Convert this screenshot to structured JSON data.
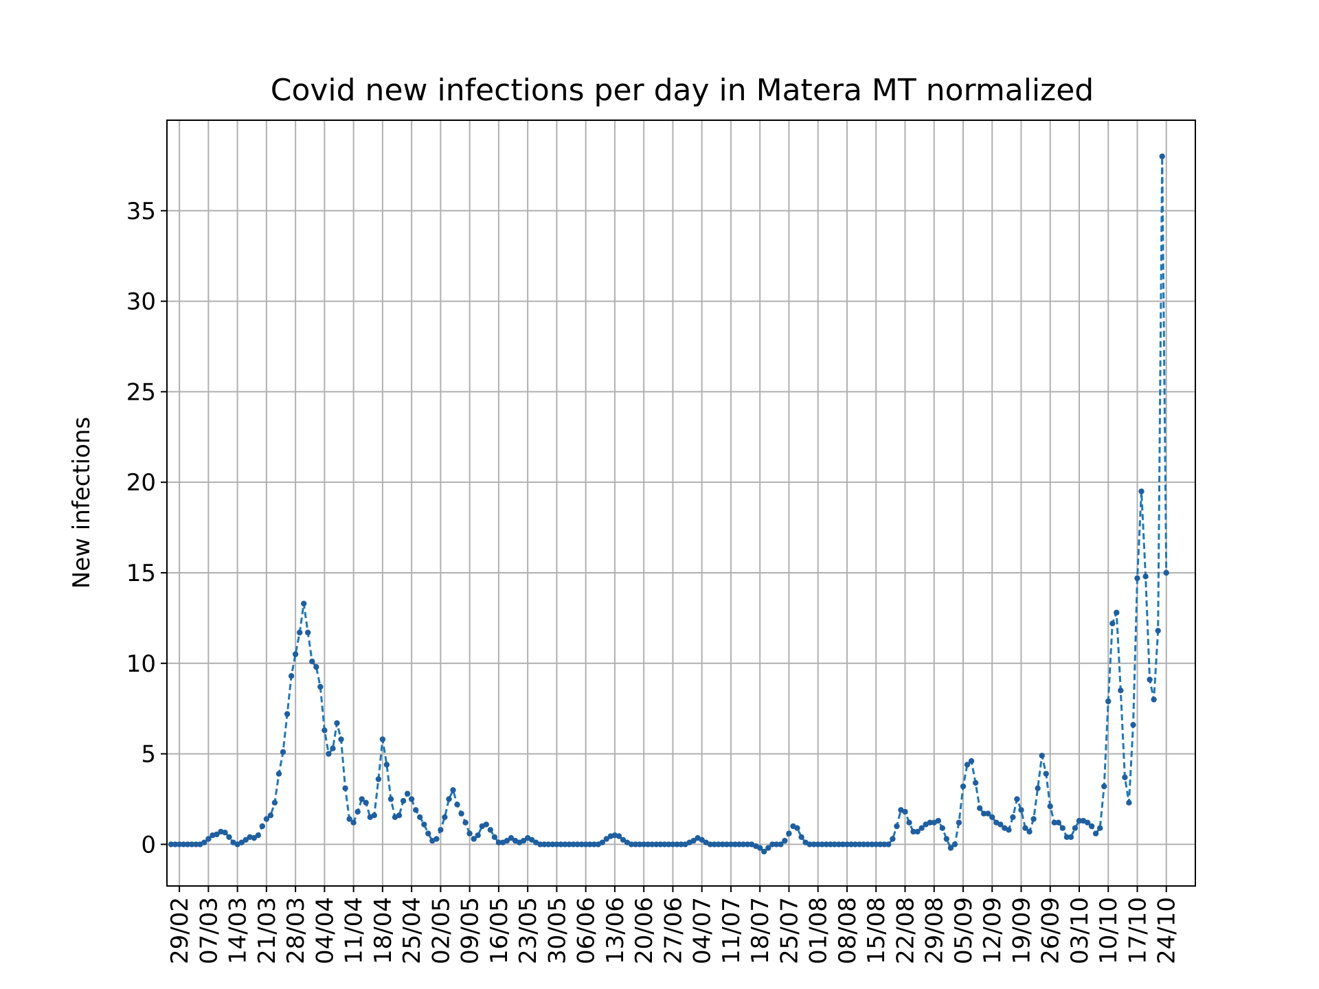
{
  "chart_data": {
    "type": "line",
    "title": "Covid new infections per day in Matera MT normalized",
    "xlabel": "",
    "ylabel": "New infections",
    "grid": true,
    "legend": "none",
    "line_color": "#1f77b4",
    "line_style": "dashed",
    "marker": "dot",
    "x_ticks": [
      "29/02",
      "07/03",
      "14/03",
      "21/03",
      "28/03",
      "04/04",
      "11/04",
      "18/04",
      "25/04",
      "02/05",
      "09/05",
      "16/05",
      "23/05",
      "30/05",
      "06/06",
      "13/06",
      "20/06",
      "27/06",
      "04/07",
      "11/07",
      "18/07",
      "25/07",
      "01/08",
      "08/08",
      "15/08",
      "22/08",
      "29/08",
      "05/09",
      "12/09",
      "19/09",
      "26/09",
      "03/10",
      "10/10",
      "17/10",
      "24/10"
    ],
    "y_ticks": [
      "0",
      "5",
      "10",
      "15",
      "20",
      "25",
      "30",
      "35"
    ],
    "ylim": [
      -2.3,
      40
    ],
    "x_range": [
      "2020-02-26",
      "2020-10-31"
    ],
    "series": [
      {
        "values": [
          {
            "x": "2020-02-27",
            "y": 0
          },
          {
            "x": "2020-02-28",
            "y": 0
          },
          {
            "x": "2020-02-29",
            "y": 0
          },
          {
            "x": "2020-03-01",
            "y": 0
          },
          {
            "x": "2020-03-02",
            "y": 0
          },
          {
            "x": "2020-03-03",
            "y": 0
          },
          {
            "x": "2020-03-04",
            "y": 0
          },
          {
            "x": "2020-03-05",
            "y": 0
          },
          {
            "x": "2020-03-06",
            "y": 0.1
          },
          {
            "x": "2020-03-07",
            "y": 0.3
          },
          {
            "x": "2020-03-08",
            "y": 0.5
          },
          {
            "x": "2020-03-09",
            "y": 0.55
          },
          {
            "x": "2020-03-10",
            "y": 0.7
          },
          {
            "x": "2020-03-11",
            "y": 0.65
          },
          {
            "x": "2020-03-12",
            "y": 0.4
          },
          {
            "x": "2020-03-13",
            "y": 0.1
          },
          {
            "x": "2020-03-14",
            "y": 0
          },
          {
            "x": "2020-03-15",
            "y": 0.1
          },
          {
            "x": "2020-03-16",
            "y": 0.25
          },
          {
            "x": "2020-03-17",
            "y": 0.4
          },
          {
            "x": "2020-03-18",
            "y": 0.35
          },
          {
            "x": "2020-03-19",
            "y": 0.5
          },
          {
            "x": "2020-03-20",
            "y": 1.0
          },
          {
            "x": "2020-03-21",
            "y": 1.4
          },
          {
            "x": "2020-03-22",
            "y": 1.6
          },
          {
            "x": "2020-03-23",
            "y": 2.3
          },
          {
            "x": "2020-03-24",
            "y": 3.9
          },
          {
            "x": "2020-03-25",
            "y": 5.1
          },
          {
            "x": "2020-03-26",
            "y": 7.2
          },
          {
            "x": "2020-03-27",
            "y": 9.3
          },
          {
            "x": "2020-03-28",
            "y": 10.5
          },
          {
            "x": "2020-03-29",
            "y": 11.7
          },
          {
            "x": "2020-03-30",
            "y": 13.3
          },
          {
            "x": "2020-03-31",
            "y": 11.7
          },
          {
            "x": "2020-04-01",
            "y": 10.1
          },
          {
            "x": "2020-04-02",
            "y": 9.8
          },
          {
            "x": "2020-04-03",
            "y": 8.7
          },
          {
            "x": "2020-04-04",
            "y": 6.3
          },
          {
            "x": "2020-04-05",
            "y": 5.0
          },
          {
            "x": "2020-04-06",
            "y": 5.3
          },
          {
            "x": "2020-04-07",
            "y": 6.7
          },
          {
            "x": "2020-04-08",
            "y": 5.8
          },
          {
            "x": "2020-04-09",
            "y": 3.1
          },
          {
            "x": "2020-04-10",
            "y": 1.4
          },
          {
            "x": "2020-04-11",
            "y": 1.2
          },
          {
            "x": "2020-04-12",
            "y": 1.8
          },
          {
            "x": "2020-04-13",
            "y": 2.5
          },
          {
            "x": "2020-04-14",
            "y": 2.3
          },
          {
            "x": "2020-04-15",
            "y": 1.5
          },
          {
            "x": "2020-04-16",
            "y": 1.6
          },
          {
            "x": "2020-04-17",
            "y": 3.6
          },
          {
            "x": "2020-04-18",
            "y": 5.8
          },
          {
            "x": "2020-04-19",
            "y": 4.4
          },
          {
            "x": "2020-04-20",
            "y": 2.5
          },
          {
            "x": "2020-04-21",
            "y": 1.5
          },
          {
            "x": "2020-04-22",
            "y": 1.6
          },
          {
            "x": "2020-04-23",
            "y": 2.4
          },
          {
            "x": "2020-04-24",
            "y": 2.8
          },
          {
            "x": "2020-04-25",
            "y": 2.5
          },
          {
            "x": "2020-04-26",
            "y": 1.9
          },
          {
            "x": "2020-04-27",
            "y": 1.5
          },
          {
            "x": "2020-04-28",
            "y": 1.1
          },
          {
            "x": "2020-04-29",
            "y": 0.6
          },
          {
            "x": "2020-04-30",
            "y": 0.2
          },
          {
            "x": "2020-05-01",
            "y": 0.3
          },
          {
            "x": "2020-05-02",
            "y": 0.8
          },
          {
            "x": "2020-05-03",
            "y": 1.5
          },
          {
            "x": "2020-05-04",
            "y": 2.5
          },
          {
            "x": "2020-05-05",
            "y": 3.0
          },
          {
            "x": "2020-05-06",
            "y": 2.2
          },
          {
            "x": "2020-05-07",
            "y": 1.7
          },
          {
            "x": "2020-05-08",
            "y": 1.2
          },
          {
            "x": "2020-05-09",
            "y": 0.6
          },
          {
            "x": "2020-05-10",
            "y": 0.3
          },
          {
            "x": "2020-05-11",
            "y": 0.5
          },
          {
            "x": "2020-05-12",
            "y": 1.0
          },
          {
            "x": "2020-05-13",
            "y": 1.1
          },
          {
            "x": "2020-05-14",
            "y": 0.8
          },
          {
            "x": "2020-05-15",
            "y": 0.4
          },
          {
            "x": "2020-05-16",
            "y": 0.1
          },
          {
            "x": "2020-05-17",
            "y": 0.1
          },
          {
            "x": "2020-05-18",
            "y": 0.2
          },
          {
            "x": "2020-05-19",
            "y": 0.35
          },
          {
            "x": "2020-05-20",
            "y": 0.2
          },
          {
            "x": "2020-05-21",
            "y": 0.1
          },
          {
            "x": "2020-05-22",
            "y": 0.2
          },
          {
            "x": "2020-05-23",
            "y": 0.35
          },
          {
            "x": "2020-05-24",
            "y": 0.25
          },
          {
            "x": "2020-05-25",
            "y": 0.1
          },
          {
            "x": "2020-05-26",
            "y": 0
          },
          {
            "x": "2020-05-27",
            "y": 0
          },
          {
            "x": "2020-05-28",
            "y": 0
          },
          {
            "x": "2020-05-29",
            "y": 0
          },
          {
            "x": "2020-05-30",
            "y": 0
          },
          {
            "x": "2020-05-31",
            "y": 0
          },
          {
            "x": "2020-06-01",
            "y": 0
          },
          {
            "x": "2020-06-02",
            "y": 0
          },
          {
            "x": "2020-06-03",
            "y": 0
          },
          {
            "x": "2020-06-04",
            "y": 0
          },
          {
            "x": "2020-06-05",
            "y": 0
          },
          {
            "x": "2020-06-06",
            "y": 0
          },
          {
            "x": "2020-06-07",
            "y": 0
          },
          {
            "x": "2020-06-08",
            "y": 0
          },
          {
            "x": "2020-06-09",
            "y": 0
          },
          {
            "x": "2020-06-10",
            "y": 0.1
          },
          {
            "x": "2020-06-11",
            "y": 0.3
          },
          {
            "x": "2020-06-12",
            "y": 0.45
          },
          {
            "x": "2020-06-13",
            "y": 0.5
          },
          {
            "x": "2020-06-14",
            "y": 0.45
          },
          {
            "x": "2020-06-15",
            "y": 0.25
          },
          {
            "x": "2020-06-16",
            "y": 0.1
          },
          {
            "x": "2020-06-17",
            "y": 0
          },
          {
            "x": "2020-06-18",
            "y": 0
          },
          {
            "x": "2020-06-19",
            "y": 0
          },
          {
            "x": "2020-06-20",
            "y": 0
          },
          {
            "x": "2020-06-21",
            "y": 0
          },
          {
            "x": "2020-06-22",
            "y": 0
          },
          {
            "x": "2020-06-23",
            "y": 0
          },
          {
            "x": "2020-06-24",
            "y": 0
          },
          {
            "x": "2020-06-25",
            "y": 0
          },
          {
            "x": "2020-06-26",
            "y": 0
          },
          {
            "x": "2020-06-27",
            "y": 0
          },
          {
            "x": "2020-06-28",
            "y": 0
          },
          {
            "x": "2020-06-29",
            "y": 0
          },
          {
            "x": "2020-06-30",
            "y": 0
          },
          {
            "x": "2020-07-01",
            "y": 0.1
          },
          {
            "x": "2020-07-02",
            "y": 0.2
          },
          {
            "x": "2020-07-03",
            "y": 0.35
          },
          {
            "x": "2020-07-04",
            "y": 0.25
          },
          {
            "x": "2020-07-05",
            "y": 0.1
          },
          {
            "x": "2020-07-06",
            "y": 0
          },
          {
            "x": "2020-07-07",
            "y": 0
          },
          {
            "x": "2020-07-08",
            "y": 0
          },
          {
            "x": "2020-07-09",
            "y": 0
          },
          {
            "x": "2020-07-10",
            "y": 0
          },
          {
            "x": "2020-07-11",
            "y": 0
          },
          {
            "x": "2020-07-12",
            "y": 0
          },
          {
            "x": "2020-07-13",
            "y": 0
          },
          {
            "x": "2020-07-14",
            "y": 0
          },
          {
            "x": "2020-07-15",
            "y": 0
          },
          {
            "x": "2020-07-16",
            "y": 0
          },
          {
            "x": "2020-07-17",
            "y": -0.1
          },
          {
            "x": "2020-07-18",
            "y": -0.2
          },
          {
            "x": "2020-07-19",
            "y": -0.4
          },
          {
            "x": "2020-07-20",
            "y": -0.2
          },
          {
            "x": "2020-07-21",
            "y": 0
          },
          {
            "x": "2020-07-22",
            "y": 0
          },
          {
            "x": "2020-07-23",
            "y": 0
          },
          {
            "x": "2020-07-24",
            "y": 0.2
          },
          {
            "x": "2020-07-25",
            "y": 0.6
          },
          {
            "x": "2020-07-26",
            "y": 1.0
          },
          {
            "x": "2020-07-27",
            "y": 0.9
          },
          {
            "x": "2020-07-28",
            "y": 0.4
          },
          {
            "x": "2020-07-29",
            "y": 0.1
          },
          {
            "x": "2020-07-30",
            "y": 0
          },
          {
            "x": "2020-07-31",
            "y": 0
          },
          {
            "x": "2020-08-01",
            "y": 0
          },
          {
            "x": "2020-08-02",
            "y": 0
          },
          {
            "x": "2020-08-03",
            "y": 0
          },
          {
            "x": "2020-08-04",
            "y": 0
          },
          {
            "x": "2020-08-05",
            "y": 0
          },
          {
            "x": "2020-08-06",
            "y": 0
          },
          {
            "x": "2020-08-07",
            "y": 0
          },
          {
            "x": "2020-08-08",
            "y": 0
          },
          {
            "x": "2020-08-09",
            "y": 0
          },
          {
            "x": "2020-08-10",
            "y": 0
          },
          {
            "x": "2020-08-11",
            "y": 0
          },
          {
            "x": "2020-08-12",
            "y": 0
          },
          {
            "x": "2020-08-13",
            "y": 0
          },
          {
            "x": "2020-08-14",
            "y": 0
          },
          {
            "x": "2020-08-15",
            "y": 0
          },
          {
            "x": "2020-08-16",
            "y": 0
          },
          {
            "x": "2020-08-17",
            "y": 0
          },
          {
            "x": "2020-08-18",
            "y": 0
          },
          {
            "x": "2020-08-19",
            "y": 0.3
          },
          {
            "x": "2020-08-20",
            "y": 1.0
          },
          {
            "x": "2020-08-21",
            "y": 1.9
          },
          {
            "x": "2020-08-22",
            "y": 1.8
          },
          {
            "x": "2020-08-23",
            "y": 1.2
          },
          {
            "x": "2020-08-24",
            "y": 0.7
          },
          {
            "x": "2020-08-25",
            "y": 0.7
          },
          {
            "x": "2020-08-26",
            "y": 0.9
          },
          {
            "x": "2020-08-27",
            "y": 1.1
          },
          {
            "x": "2020-08-28",
            "y": 1.2
          },
          {
            "x": "2020-08-29",
            "y": 1.2
          },
          {
            "x": "2020-08-30",
            "y": 1.3
          },
          {
            "x": "2020-08-31",
            "y": 0.9
          },
          {
            "x": "2020-09-01",
            "y": 0.3
          },
          {
            "x": "2020-09-02",
            "y": -0.2
          },
          {
            "x": "2020-09-03",
            "y": 0
          },
          {
            "x": "2020-09-04",
            "y": 1.2
          },
          {
            "x": "2020-09-05",
            "y": 3.2
          },
          {
            "x": "2020-09-06",
            "y": 4.4
          },
          {
            "x": "2020-09-07",
            "y": 4.6
          },
          {
            "x": "2020-09-08",
            "y": 3.4
          },
          {
            "x": "2020-09-09",
            "y": 2.0
          },
          {
            "x": "2020-09-10",
            "y": 1.7
          },
          {
            "x": "2020-09-11",
            "y": 1.7
          },
          {
            "x": "2020-09-12",
            "y": 1.5
          },
          {
            "x": "2020-09-13",
            "y": 1.2
          },
          {
            "x": "2020-09-14",
            "y": 1.1
          },
          {
            "x": "2020-09-15",
            "y": 0.9
          },
          {
            "x": "2020-09-16",
            "y": 0.8
          },
          {
            "x": "2020-09-17",
            "y": 1.5
          },
          {
            "x": "2020-09-18",
            "y": 2.5
          },
          {
            "x": "2020-09-19",
            "y": 1.9
          },
          {
            "x": "2020-09-20",
            "y": 0.9
          },
          {
            "x": "2020-09-21",
            "y": 0.7
          },
          {
            "x": "2020-09-22",
            "y": 1.4
          },
          {
            "x": "2020-09-23",
            "y": 3.1
          },
          {
            "x": "2020-09-24",
            "y": 4.9
          },
          {
            "x": "2020-09-25",
            "y": 3.9
          },
          {
            "x": "2020-09-26",
            "y": 2.1
          },
          {
            "x": "2020-09-27",
            "y": 1.2
          },
          {
            "x": "2020-09-28",
            "y": 1.2
          },
          {
            "x": "2020-09-29",
            "y": 0.9
          },
          {
            "x": "2020-09-30",
            "y": 0.4
          },
          {
            "x": "2020-10-01",
            "y": 0.4
          },
          {
            "x": "2020-10-02",
            "y": 0.9
          },
          {
            "x": "2020-10-03",
            "y": 1.3
          },
          {
            "x": "2020-10-04",
            "y": 1.3
          },
          {
            "x": "2020-10-05",
            "y": 1.2
          },
          {
            "x": "2020-10-06",
            "y": 1.0
          },
          {
            "x": "2020-10-07",
            "y": 0.6
          },
          {
            "x": "2020-10-08",
            "y": 0.9
          },
          {
            "x": "2020-10-09",
            "y": 3.2
          },
          {
            "x": "2020-10-10",
            "y": 7.9
          },
          {
            "x": "2020-10-11",
            "y": 12.2
          },
          {
            "x": "2020-10-12",
            "y": 12.8
          },
          {
            "x": "2020-10-13",
            "y": 8.5
          },
          {
            "x": "2020-10-14",
            "y": 3.7
          },
          {
            "x": "2020-10-15",
            "y": 2.3
          },
          {
            "x": "2020-10-16",
            "y": 6.6
          },
          {
            "x": "2020-10-17",
            "y": 14.7
          },
          {
            "x": "2020-10-18",
            "y": 19.5
          },
          {
            "x": "2020-10-19",
            "y": 14.8
          },
          {
            "x": "2020-10-20",
            "y": 9.1
          },
          {
            "x": "2020-10-21",
            "y": 8.0
          },
          {
            "x": "2020-10-22",
            "y": 11.8
          },
          {
            "x": "2020-10-23",
            "y": 38.0
          },
          {
            "x": "2020-10-24",
            "y": 15.0
          }
        ]
      }
    ]
  }
}
